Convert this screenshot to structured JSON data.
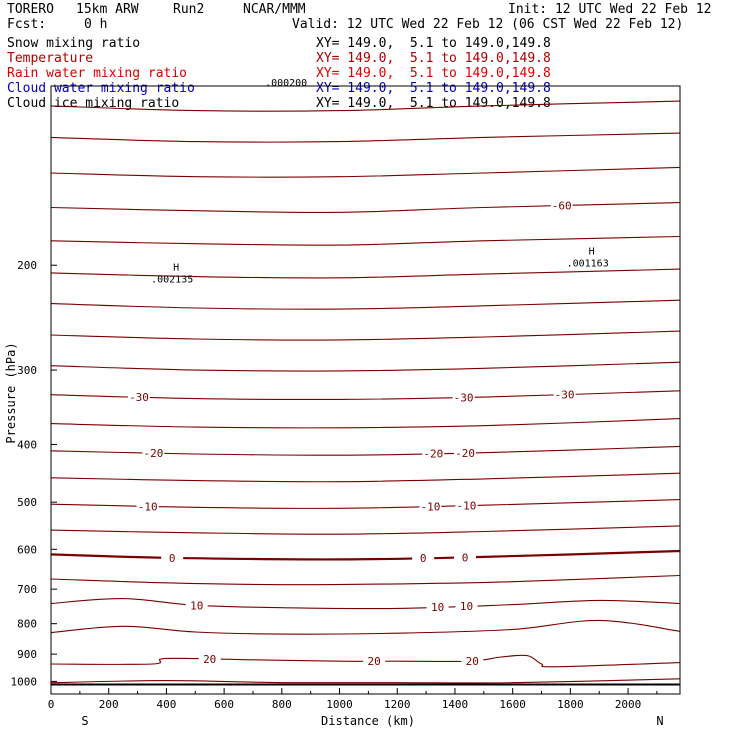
{
  "header": {
    "model": "TORERO",
    "config": "15km ARW",
    "run": "Run2",
    "org": "NCAR/MMM",
    "init": "Init: 12 UTC Wed 22 Feb 12",
    "fcst_label": "Fcst:",
    "fcst_value": "0 h",
    "valid": "Valid: 12 UTC Wed 22 Feb 12 (06 CST Wed 22 Feb 12)"
  },
  "fields": [
    {
      "name": "Snow mixing ratio",
      "xy": "XY= 149.0,  5.1 to 149.0,149.8",
      "color": "#000000"
    },
    {
      "name": "Temperature",
      "xy": "XY= 149.0,  5.1 to 149.0,149.8",
      "color": "#b00000"
    },
    {
      "name": "Rain water mixing ratio",
      "xy": "XY= 149.0,  5.1 to 149.0,149.8",
      "color": "#e00000"
    },
    {
      "name": "Cloud water mixing ratio",
      "xy": "XY= 149.0,  5.1 to 149.0,149.8",
      "color": "#0000c0"
    },
    {
      "name": "Cloud ice mixing ratio",
      "xy": "XY= 149.0,  5.1 to 149.0,149.8",
      "color": "#000000"
    }
  ],
  "colors": {
    "isotherm": "#7a0000",
    "ground": "#000000",
    "axis": "#000000"
  },
  "chart_data": {
    "type": "line",
    "title": "",
    "xlabel": "Distance (km)",
    "ylabel": "Pressure (hPa)",
    "xlim": [
      0,
      2180
    ],
    "ylim": [
      1050,
      100
    ],
    "y_scale": "log-pressure",
    "x_ticks": [
      0,
      200,
      400,
      600,
      800,
      1000,
      1200,
      1400,
      1600,
      1800,
      2000
    ],
    "y_ticks": [
      200,
      300,
      400,
      500,
      600,
      700,
      800,
      900,
      1000
    ],
    "x_end_labels": {
      "left": "S",
      "right": "N"
    },
    "contour_interval_c": 5,
    "series": [
      {
        "x": [
          0,
          500,
          1000,
          1500,
          2180
        ],
        "p": [
          108,
          110,
          110,
          108,
          106
        ]
      },
      {
        "x": [
          0,
          500,
          1000,
          1500,
          2180
        ],
        "p": [
          122,
          124,
          124,
          122,
          120
        ]
      },
      {
        "x": [
          0,
          500,
          1000,
          1500,
          2180
        ],
        "p": [
          140,
          142,
          142,
          140,
          137
        ]
      },
      {
        "x": [
          0,
          500,
          1000,
          1500,
          2180
        ],
        "p": [
          160,
          162,
          163,
          160,
          157
        ],
        "label": "-60",
        "label_at_x": [
          1770
        ]
      },
      {
        "x": [
          0,
          500,
          1000,
          1500,
          2180
        ],
        "p": [
          182,
          184,
          185,
          182,
          179
        ]
      },
      {
        "x": [
          0,
          500,
          1000,
          1500,
          2180
        ],
        "p": [
          206,
          209,
          210,
          207,
          203
        ]
      },
      {
        "x": [
          0,
          500,
          1000,
          1500,
          2180
        ],
        "p": [
          232,
          236,
          237,
          234,
          229
        ]
      },
      {
        "x": [
          0,
          500,
          1000,
          1500,
          2180
        ],
        "p": [
          262,
          266,
          267,
          264,
          258
        ]
      },
      {
        "x": [
          0,
          500,
          1000,
          1500,
          2180
        ],
        "p": [
          295,
          300,
          301,
          298,
          291
        ]
      },
      {
        "x": [
          0,
          500,
          1000,
          1500,
          2180
        ],
        "p": [
          330,
          335,
          336,
          333,
          325
        ],
        "label": "-30",
        "label_at_x": [
          305,
          1430,
          1780
        ]
      },
      {
        "x": [
          0,
          500,
          1000,
          1500,
          2180
        ],
        "p": [
          369,
          374,
          375,
          372,
          362
        ]
      },
      {
        "x": [
          0,
          500,
          1000,
          1500,
          2180
        ],
        "p": [
          410,
          415,
          417,
          413,
          403
        ],
        "label": "-20",
        "label_at_x": [
          355,
          1325,
          1435
        ]
      },
      {
        "x": [
          0,
          500,
          1000,
          1500,
          2180
        ],
        "p": [
          455,
          460,
          462,
          457,
          447
        ]
      },
      {
        "x": [
          0,
          500,
          1000,
          1500,
          2180
        ],
        "p": [
          504,
          510,
          512,
          506,
          495
        ],
        "label": "-10",
        "label_at_x": [
          335,
          1315,
          1440
        ]
      },
      {
        "x": [
          0,
          500,
          1000,
          1500,
          2180
        ],
        "p": [
          557,
          563,
          566,
          560,
          548
        ]
      },
      {
        "x": [
          0,
          400,
          1000,
          1500,
          2180
        ],
        "p": [
          612,
          620,
          624,
          618,
          604
        ],
        "label": "0",
        "label_at_x": [
          420,
          1290,
          1435
        ]
      },
      {
        "x": [
          0,
          400,
          800,
          1200,
          1600,
          2180
        ],
        "p": [
          673,
          683,
          688,
          686,
          680,
          664
        ]
      },
      {
        "x": [
          0,
          250,
          500,
          800,
          1200,
          1600,
          1900,
          2180
        ],
        "p": [
          740,
          726,
          745,
          752,
          754,
          743,
          731,
          740
        ],
        "label": "10",
        "label_at_x": [
          505,
          1340,
          1440
        ]
      },
      {
        "x": [
          0,
          250,
          500,
          800,
          1200,
          1600,
          1900,
          2180
        ],
        "p": [
          828,
          808,
          826,
          833,
          830,
          818,
          790,
          824
        ]
      },
      {
        "x": [
          0,
          350,
          400,
          700,
          1000,
          1200,
          1450,
          1560,
          1650,
          1700,
          1750,
          2180
        ],
        "p": [
          935,
          935,
          915,
          920,
          925,
          925,
          925,
          910,
          905,
          935,
          945,
          930
        ],
        "label": "20",
        "label_at_x": [
          550,
          1120,
          1460
        ]
      },
      {
        "x": [
          0,
          400,
          800,
          1200,
          1600,
          2180
        ],
        "p": [
          1005,
          997,
          1005,
          1005,
          1005,
          990
        ]
      }
    ],
    "ground": {
      "x": [
        0,
        2180
      ],
      "p": [
        1012,
        1012
      ]
    },
    "annotations": [
      {
        "symbol": "H",
        "value": ".002135",
        "x": 420,
        "p": 204
      },
      {
        "symbol": "H",
        "value": ".001163",
        "x": 1860,
        "p": 192
      },
      {
        "symbol": "",
        "value": ".000200",
        "x": 815,
        "p": 100
      }
    ]
  }
}
